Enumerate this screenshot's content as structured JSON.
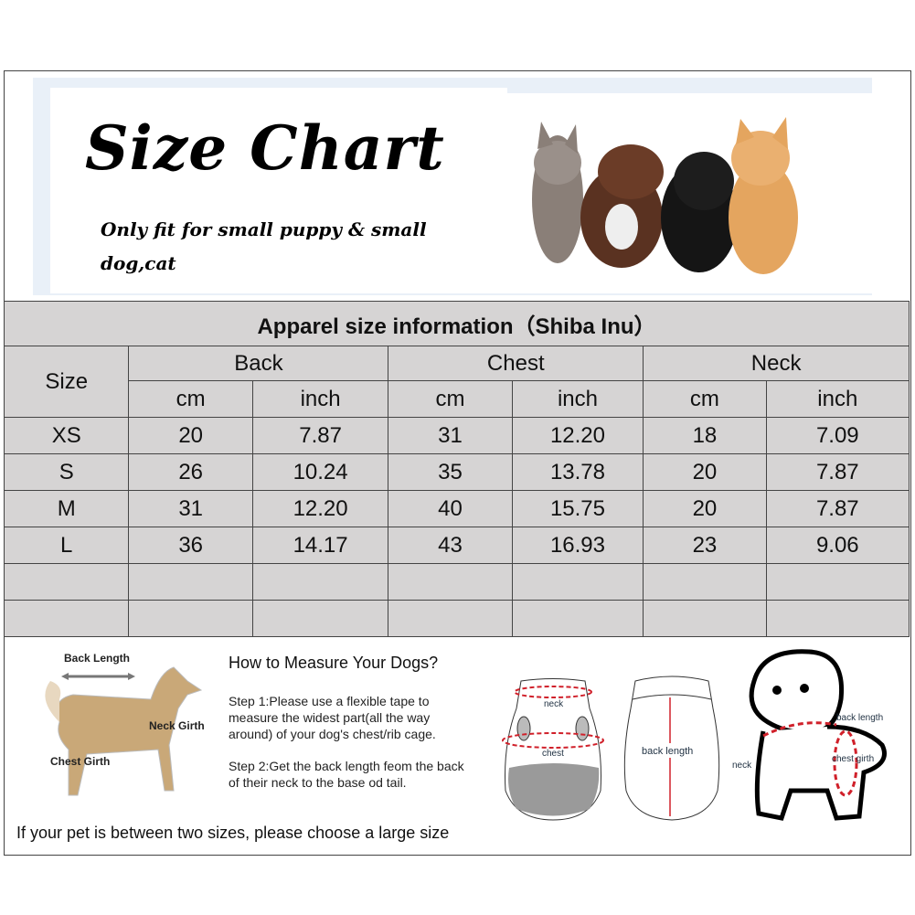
{
  "banner": {
    "title": "Size Chart",
    "subtitle": "Only fit for  small puppy & small dog,cat"
  },
  "table": {
    "title": "Apparel  size  information（Shiba Inu）",
    "size_header": "Size",
    "groups": [
      "Back",
      "Chest",
      "Neck"
    ],
    "units": [
      "cm",
      "inch",
      "cm",
      "inch",
      "cm",
      "inch"
    ],
    "rows": [
      {
        "size": "XS",
        "values": [
          "20",
          "7.87",
          "31",
          "12.20",
          "18",
          "7.09"
        ]
      },
      {
        "size": "S",
        "values": [
          "26",
          "10.24",
          "35",
          "13.78",
          "20",
          "7.87"
        ]
      },
      {
        "size": "M",
        "values": [
          "31",
          "12.20",
          "40",
          "15.75",
          "20",
          "7.87"
        ]
      },
      {
        "size": "L",
        "values": [
          "36",
          "14.17",
          "43",
          "16.93",
          "23",
          "9.06"
        ]
      }
    ]
  },
  "measure": {
    "dog_labels": {
      "back": "Back Length",
      "neck": "Neck Girth",
      "chest": "Chest Girth"
    },
    "heading": "How to Measure Your Dogs?",
    "step1": "Step 1:Please use a flexible tape to measure the widest part(all the way around) of your dog's chest/rib cage.",
    "step2": "Step 2:Get the back length feom the back of their neck to the base od tail.",
    "note": "If your pet is between two sizes, please choose a large size",
    "garment_labels": {
      "neck": "neck",
      "chest": "chest",
      "back": "back length"
    },
    "puppy_labels": {
      "back": "back length",
      "neck": "neck",
      "chest": "chest girth"
    }
  },
  "colors": {
    "table_bg": "#d6d4d4",
    "accent": "#d0202a"
  }
}
